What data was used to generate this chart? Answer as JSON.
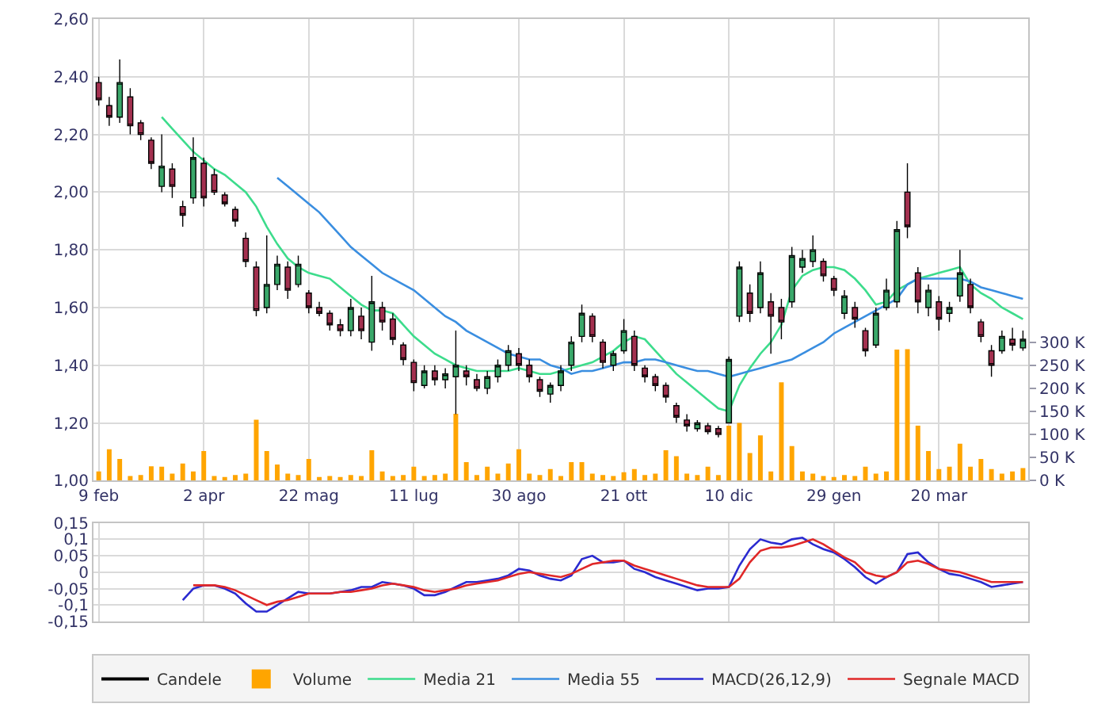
{
  "chart_data": [
    {
      "type": "candlestick",
      "categories": [
        "9 feb",
        null,
        null,
        null,
        null,
        null,
        null,
        null,
        null,
        null,
        "2 apr",
        null,
        null,
        null,
        null,
        null,
        null,
        null,
        null,
        null,
        "22 mag",
        null,
        null,
        null,
        null,
        null,
        null,
        null,
        null,
        null,
        "11 lug",
        null,
        null,
        null,
        null,
        null,
        null,
        null,
        null,
        null,
        "30 ago",
        null,
        null,
        null,
        null,
        null,
        null,
        null,
        null,
        null,
        "21 ott",
        null,
        null,
        null,
        null,
        null,
        null,
        null,
        null,
        null,
        "10 dic",
        null,
        null,
        null,
        null,
        null,
        null,
        null,
        null,
        null,
        "29 gen",
        null,
        null,
        null,
        null,
        null,
        null,
        null,
        null,
        null,
        "20 mar",
        null,
        null,
        null,
        null,
        null,
        null,
        null,
        null
      ],
      "series": [
        {
          "name": "Candele",
          "type": "candlestick",
          "color": "#000000",
          "ohlc": [
            [
              2.38,
              2.4,
              2.3,
              2.32
            ],
            [
              2.3,
              2.33,
              2.23,
              2.26
            ],
            [
              2.26,
              2.46,
              2.24,
              2.38
            ],
            [
              2.33,
              2.36,
              2.2,
              2.23
            ],
            [
              2.24,
              2.25,
              2.18,
              2.2
            ],
            [
              2.18,
              2.19,
              2.08,
              2.1
            ],
            [
              2.02,
              2.2,
              2.0,
              2.09
            ],
            [
              2.08,
              2.1,
              1.98,
              2.02
            ],
            [
              1.95,
              1.97,
              1.88,
              1.92
            ],
            [
              1.98,
              2.19,
              1.96,
              2.12
            ],
            [
              2.1,
              2.12,
              1.95,
              1.98
            ],
            [
              2.06,
              2.08,
              1.99,
              2.0
            ],
            [
              1.99,
              2.0,
              1.95,
              1.96
            ],
            [
              1.94,
              1.95,
              1.88,
              1.9
            ],
            [
              1.84,
              1.86,
              1.74,
              1.76
            ],
            [
              1.74,
              1.76,
              1.57,
              1.59
            ],
            [
              1.6,
              1.85,
              1.58,
              1.68
            ],
            [
              1.68,
              1.78,
              1.66,
              1.75
            ],
            [
              1.74,
              1.76,
              1.63,
              1.66
            ],
            [
              1.68,
              1.78,
              1.67,
              1.75
            ],
            [
              1.65,
              1.66,
              1.58,
              1.6
            ],
            [
              1.6,
              1.62,
              1.57,
              1.58
            ],
            [
              1.58,
              1.59,
              1.52,
              1.54
            ],
            [
              1.54,
              1.56,
              1.5,
              1.52
            ],
            [
              1.52,
              1.63,
              1.5,
              1.6
            ],
            [
              1.57,
              1.6,
              1.49,
              1.52
            ],
            [
              1.48,
              1.71,
              1.45,
              1.62
            ],
            [
              1.6,
              1.62,
              1.52,
              1.55
            ],
            [
              1.56,
              1.58,
              1.47,
              1.49
            ],
            [
              1.47,
              1.48,
              1.4,
              1.42
            ],
            [
              1.41,
              1.42,
              1.31,
              1.34
            ],
            [
              1.33,
              1.4,
              1.32,
              1.38
            ],
            [
              1.38,
              1.4,
              1.33,
              1.35
            ],
            [
              1.35,
              1.39,
              1.32,
              1.37
            ],
            [
              1.36,
              1.52,
              1.23,
              1.4
            ],
            [
              1.38,
              1.4,
              1.33,
              1.36
            ],
            [
              1.35,
              1.37,
              1.31,
              1.32
            ],
            [
              1.32,
              1.38,
              1.3,
              1.36
            ],
            [
              1.36,
              1.42,
              1.34,
              1.4
            ],
            [
              1.4,
              1.47,
              1.38,
              1.45
            ],
            [
              1.44,
              1.46,
              1.38,
              1.4
            ],
            [
              1.4,
              1.42,
              1.34,
              1.36
            ],
            [
              1.35,
              1.36,
              1.29,
              1.31
            ],
            [
              1.3,
              1.34,
              1.27,
              1.33
            ],
            [
              1.33,
              1.4,
              1.31,
              1.38
            ],
            [
              1.4,
              1.5,
              1.38,
              1.48
            ],
            [
              1.5,
              1.61,
              1.48,
              1.58
            ],
            [
              1.57,
              1.58,
              1.48,
              1.5
            ],
            [
              1.48,
              1.49,
              1.39,
              1.41
            ],
            [
              1.4,
              1.45,
              1.38,
              1.44
            ],
            [
              1.45,
              1.56,
              1.44,
              1.52
            ],
            [
              1.5,
              1.52,
              1.38,
              1.4
            ],
            [
              1.39,
              1.4,
              1.34,
              1.36
            ],
            [
              1.36,
              1.37,
              1.31,
              1.33
            ],
            [
              1.33,
              1.34,
              1.27,
              1.29
            ],
            [
              1.26,
              1.27,
              1.2,
              1.22
            ],
            [
              1.21,
              1.23,
              1.17,
              1.19
            ],
            [
              1.18,
              1.21,
              1.17,
              1.2
            ],
            [
              1.19,
              1.2,
              1.16,
              1.17
            ],
            [
              1.18,
              1.19,
              1.15,
              1.16
            ],
            [
              1.2,
              1.43,
              1.2,
              1.42
            ],
            [
              1.57,
              1.76,
              1.55,
              1.74
            ],
            [
              1.65,
              1.68,
              1.55,
              1.58
            ],
            [
              1.6,
              1.76,
              1.58,
              1.72
            ],
            [
              1.62,
              1.65,
              1.44,
              1.57
            ],
            [
              1.6,
              1.63,
              1.49,
              1.55
            ],
            [
              1.62,
              1.81,
              1.6,
              1.78
            ],
            [
              1.74,
              1.8,
              1.72,
              1.77
            ],
            [
              1.76,
              1.85,
              1.74,
              1.8
            ],
            [
              1.76,
              1.77,
              1.69,
              1.71
            ],
            [
              1.7,
              1.71,
              1.64,
              1.66
            ],
            [
              1.58,
              1.66,
              1.56,
              1.64
            ],
            [
              1.6,
              1.62,
              1.53,
              1.56
            ],
            [
              1.52,
              1.53,
              1.43,
              1.45
            ],
            [
              1.47,
              1.6,
              1.46,
              1.58
            ],
            [
              1.6,
              1.7,
              1.59,
              1.66
            ],
            [
              1.62,
              1.9,
              1.6,
              1.87
            ],
            [
              2.0,
              2.1,
              1.84,
              1.88
            ],
            [
              1.72,
              1.74,
              1.58,
              1.62
            ],
            [
              1.6,
              1.68,
              1.57,
              1.66
            ],
            [
              1.62,
              1.64,
              1.52,
              1.56
            ],
            [
              1.58,
              1.62,
              1.55,
              1.6
            ],
            [
              1.64,
              1.8,
              1.62,
              1.72
            ],
            [
              1.68,
              1.7,
              1.58,
              1.6
            ],
            [
              1.55,
              1.56,
              1.48,
              1.5
            ],
            [
              1.45,
              1.47,
              1.36,
              1.4
            ],
            [
              1.45,
              1.52,
              1.44,
              1.5
            ],
            [
              1.49,
              1.53,
              1.45,
              1.47
            ],
            [
              1.46,
              1.52,
              1.45,
              1.49
            ]
          ],
          "colors": [
            "#a3304f",
            "#a3304f",
            "#3aa86a",
            "#a3304f",
            "#a3304f",
            "#a3304f",
            "#3aa86a",
            "#a3304f",
            "#a3304f",
            "#3aa86a",
            "#a3304f",
            "#a3304f",
            "#a3304f",
            "#a3304f",
            "#a3304f",
            "#a3304f",
            "#3aa86a",
            "#3aa86a",
            "#a3304f",
            "#3aa86a",
            "#a3304f",
            "#a3304f",
            "#a3304f",
            "#a3304f",
            "#3aa86a",
            "#a3304f",
            "#3aa86a",
            "#a3304f",
            "#a3304f",
            "#a3304f",
            "#a3304f",
            "#3aa86a",
            "#a3304f",
            "#3aa86a",
            "#3aa86a",
            "#a3304f",
            "#a3304f",
            "#3aa86a",
            "#3aa86a",
            "#3aa86a",
            "#a3304f",
            "#a3304f",
            "#a3304f",
            "#3aa86a",
            "#3aa86a",
            "#3aa86a",
            "#3aa86a",
            "#a3304f",
            "#a3304f",
            "#3aa86a",
            "#3aa86a",
            "#a3304f",
            "#a3304f",
            "#a3304f",
            "#a3304f",
            "#a3304f",
            "#a3304f",
            "#3aa86a",
            "#a3304f",
            "#a3304f",
            "#3aa86a",
            "#3aa86a",
            "#a3304f",
            "#3aa86a",
            "#a3304f",
            "#a3304f",
            "#3aa86a",
            "#3aa86a",
            "#3aa86a",
            "#a3304f",
            "#a3304f",
            "#3aa86a",
            "#a3304f",
            "#a3304f",
            "#3aa86a",
            "#3aa86a",
            "#3aa86a",
            "#a3304f",
            "#a3304f",
            "#3aa86a",
            "#a3304f",
            "#3aa86a",
            "#3aa86a",
            "#a3304f",
            "#a3304f",
            "#a3304f",
            "#3aa86a",
            "#a3304f",
            "#3aa86a"
          ]
        },
        {
          "name": "Volume",
          "type": "bar",
          "axis": "y2",
          "color": "#ffa500",
          "values": [
            20,
            68,
            47,
            10,
            12,
            31,
            30,
            15,
            37,
            20,
            64,
            10,
            8,
            12,
            15,
            132,
            64,
            35,
            15,
            12,
            47,
            8,
            10,
            8,
            12,
            10,
            66,
            20,
            10,
            12,
            30,
            10,
            12,
            15,
            145,
            40,
            12,
            30,
            15,
            37,
            68,
            15,
            12,
            25,
            10,
            40,
            40,
            15,
            12,
            10,
            18,
            25,
            12,
            15,
            66,
            53,
            15,
            12,
            30,
            12,
            119,
            125,
            60,
            98,
            20,
            213,
            75,
            20,
            15,
            10,
            8,
            12,
            10,
            30,
            15,
            20,
            284,
            285,
            119,
            64,
            25,
            30,
            80,
            30,
            47,
            25,
            15,
            20,
            27
          ]
        },
        {
          "name": "Media 21",
          "type": "line",
          "color": "#3ddc8c",
          "values": [
            null,
            null,
            null,
            null,
            null,
            null,
            2.26,
            2.22,
            2.18,
            2.14,
            2.11,
            2.08,
            2.06,
            2.03,
            2.0,
            1.95,
            1.88,
            1.82,
            1.77,
            1.74,
            1.72,
            1.71,
            1.7,
            1.67,
            1.64,
            1.61,
            1.59,
            1.59,
            1.58,
            1.54,
            1.5,
            1.47,
            1.44,
            1.42,
            1.4,
            1.39,
            1.38,
            1.38,
            1.38,
            1.38,
            1.39,
            1.38,
            1.37,
            1.37,
            1.38,
            1.39,
            1.4,
            1.41,
            1.43,
            1.45,
            1.48,
            1.5,
            1.49,
            1.45,
            1.41,
            1.37,
            1.34,
            1.31,
            1.28,
            1.25,
            1.24,
            1.33,
            1.39,
            1.44,
            1.48,
            1.54,
            1.66,
            1.71,
            1.73,
            1.74,
            1.74,
            1.73,
            1.7,
            1.66,
            1.61,
            1.62,
            1.66,
            1.68,
            1.7,
            1.71,
            1.72,
            1.73,
            1.74,
            1.68,
            1.65,
            1.63,
            1.6,
            1.58,
            1.56
          ]
        },
        {
          "name": "Media 55",
          "type": "line",
          "color": "#3a8ee0",
          "values": [
            null,
            null,
            null,
            null,
            null,
            null,
            null,
            null,
            null,
            null,
            null,
            null,
            null,
            null,
            null,
            null,
            null,
            2.05,
            2.02,
            1.99,
            1.96,
            1.93,
            1.89,
            1.85,
            1.81,
            1.78,
            1.75,
            1.72,
            1.7,
            1.68,
            1.66,
            1.63,
            1.6,
            1.57,
            1.55,
            1.52,
            1.5,
            1.48,
            1.46,
            1.44,
            1.43,
            1.42,
            1.42,
            1.4,
            1.39,
            1.37,
            1.38,
            1.38,
            1.39,
            1.4,
            1.41,
            1.41,
            1.42,
            1.42,
            1.41,
            1.4,
            1.39,
            1.38,
            1.38,
            1.37,
            1.36,
            1.37,
            1.38,
            1.39,
            1.4,
            1.41,
            1.42,
            1.44,
            1.46,
            1.48,
            1.51,
            1.53,
            1.55,
            1.57,
            1.59,
            1.61,
            1.63,
            1.68,
            1.7,
            1.7,
            1.7,
            1.7,
            1.7,
            1.69,
            1.67,
            1.66,
            1.65,
            1.64,
            1.63
          ]
        }
      ],
      "ylim": [
        1.0,
        2.6
      ],
      "yticks": [
        {
          "value": 1.0,
          "label": "1,00"
        },
        {
          "value": 1.2,
          "label": "1,20"
        },
        {
          "value": 1.4,
          "label": "1,40"
        },
        {
          "value": 1.6,
          "label": "1,60"
        },
        {
          "value": 1.8,
          "label": "1,80"
        },
        {
          "value": 2.0,
          "label": "2,00"
        },
        {
          "value": 2.2,
          "label": "2,20"
        },
        {
          "value": 2.4,
          "label": "2,40"
        },
        {
          "value": 2.6,
          "label": "2,60"
        }
      ],
      "y2lim": [
        0,
        1000
      ],
      "y2ticks": [
        {
          "value": 0,
          "label": "0 K"
        },
        {
          "value": 50,
          "label": "50 K"
        },
        {
          "value": 100,
          "label": "100 K"
        },
        {
          "value": 150,
          "label": "150 K"
        },
        {
          "value": 200,
          "label": "200 K"
        },
        {
          "value": 250,
          "label": "250 K"
        },
        {
          "value": 300,
          "label": "300 K"
        }
      ],
      "grid": true,
      "legend": "bottom"
    },
    {
      "type": "line",
      "categories": [
        null,
        null,
        null,
        null,
        null,
        null,
        null,
        null,
        null,
        null,
        null,
        null,
        null,
        null,
        null,
        null,
        null,
        null,
        null,
        null,
        null,
        null,
        null,
        null,
        null,
        null,
        null,
        null,
        null,
        null,
        null,
        null,
        null,
        null,
        null,
        null,
        null,
        null,
        null,
        null,
        null,
        null,
        null,
        null,
        null,
        null,
        null,
        null,
        null,
        null,
        null,
        null,
        null,
        null,
        null,
        null,
        null,
        null,
        null,
        null,
        null,
        null,
        null,
        null,
        null,
        null,
        null,
        null,
        null,
        null,
        null,
        null,
        null,
        null,
        null,
        null,
        null,
        null,
        null,
        null,
        null,
        null,
        null,
        null,
        null,
        null,
        null,
        null,
        null
      ],
      "series": [
        {
          "name": "MACD(26,12,9)",
          "color": "#2a2ad0",
          "values": [
            null,
            null,
            null,
            null,
            null,
            null,
            null,
            null,
            -0.085,
            -0.05,
            -0.04,
            -0.04,
            -0.05,
            -0.065,
            -0.095,
            -0.12,
            -0.12,
            -0.1,
            -0.08,
            -0.06,
            -0.065,
            -0.065,
            -0.065,
            -0.06,
            -0.055,
            -0.045,
            -0.045,
            -0.03,
            -0.035,
            -0.04,
            -0.05,
            -0.07,
            -0.07,
            -0.06,
            -0.045,
            -0.03,
            -0.03,
            -0.025,
            -0.02,
            -0.01,
            0.01,
            0.005,
            -0.01,
            -0.02,
            -0.025,
            -0.01,
            0.04,
            0.05,
            0.03,
            0.03,
            0.035,
            0.01,
            0.0,
            -0.015,
            -0.025,
            -0.035,
            -0.045,
            -0.055,
            -0.05,
            -0.05,
            -0.045,
            0.02,
            0.07,
            0.1,
            0.09,
            0.085,
            0.1,
            0.105,
            0.085,
            0.07,
            0.06,
            0.04,
            0.015,
            -0.015,
            -0.035,
            -0.015,
            0.0,
            0.055,
            0.06,
            0.03,
            0.01,
            -0.005,
            -0.01,
            -0.02,
            -0.03,
            -0.045,
            -0.04,
            -0.035,
            -0.03
          ]
        },
        {
          "name": "Segnale MACD",
          "color": "#e02828",
          "values": [
            null,
            null,
            null,
            null,
            null,
            null,
            null,
            null,
            null,
            -0.04,
            -0.04,
            -0.04,
            -0.045,
            -0.055,
            -0.07,
            -0.085,
            -0.1,
            -0.09,
            -0.085,
            -0.075,
            -0.065,
            -0.065,
            -0.065,
            -0.06,
            -0.06,
            -0.055,
            -0.05,
            -0.04,
            -0.035,
            -0.04,
            -0.045,
            -0.055,
            -0.06,
            -0.055,
            -0.05,
            -0.04,
            -0.035,
            -0.03,
            -0.025,
            -0.015,
            -0.005,
            0.0,
            -0.005,
            -0.01,
            -0.015,
            -0.005,
            0.01,
            0.025,
            0.03,
            0.035,
            0.035,
            0.02,
            0.01,
            0.0,
            -0.01,
            -0.02,
            -0.03,
            -0.04,
            -0.045,
            -0.045,
            -0.045,
            -0.02,
            0.03,
            0.065,
            0.075,
            0.075,
            0.08,
            0.09,
            0.1,
            0.085,
            0.065,
            0.045,
            0.03,
            0.0,
            -0.01,
            -0.015,
            0.0,
            0.03,
            0.035,
            0.025,
            0.01,
            0.005,
            0.0,
            -0.01,
            -0.02,
            -0.03,
            -0.03,
            -0.03,
            -0.03
          ]
        }
      ],
      "ylim": [
        -0.15,
        0.15
      ],
      "yticks": [
        {
          "value": -0.15,
          "label": "-0,15"
        },
        {
          "value": -0.1,
          "label": "-0,1"
        },
        {
          "value": -0.05,
          "label": "-0,05"
        },
        0,
        {
          "value": 0.05,
          "label": "0,05"
        },
        {
          "value": 0.1,
          "label": "0,1"
        },
        {
          "value": 0.15,
          "label": "0,15"
        }
      ],
      "grid": true,
      "legend": "bottom"
    }
  ]
}
